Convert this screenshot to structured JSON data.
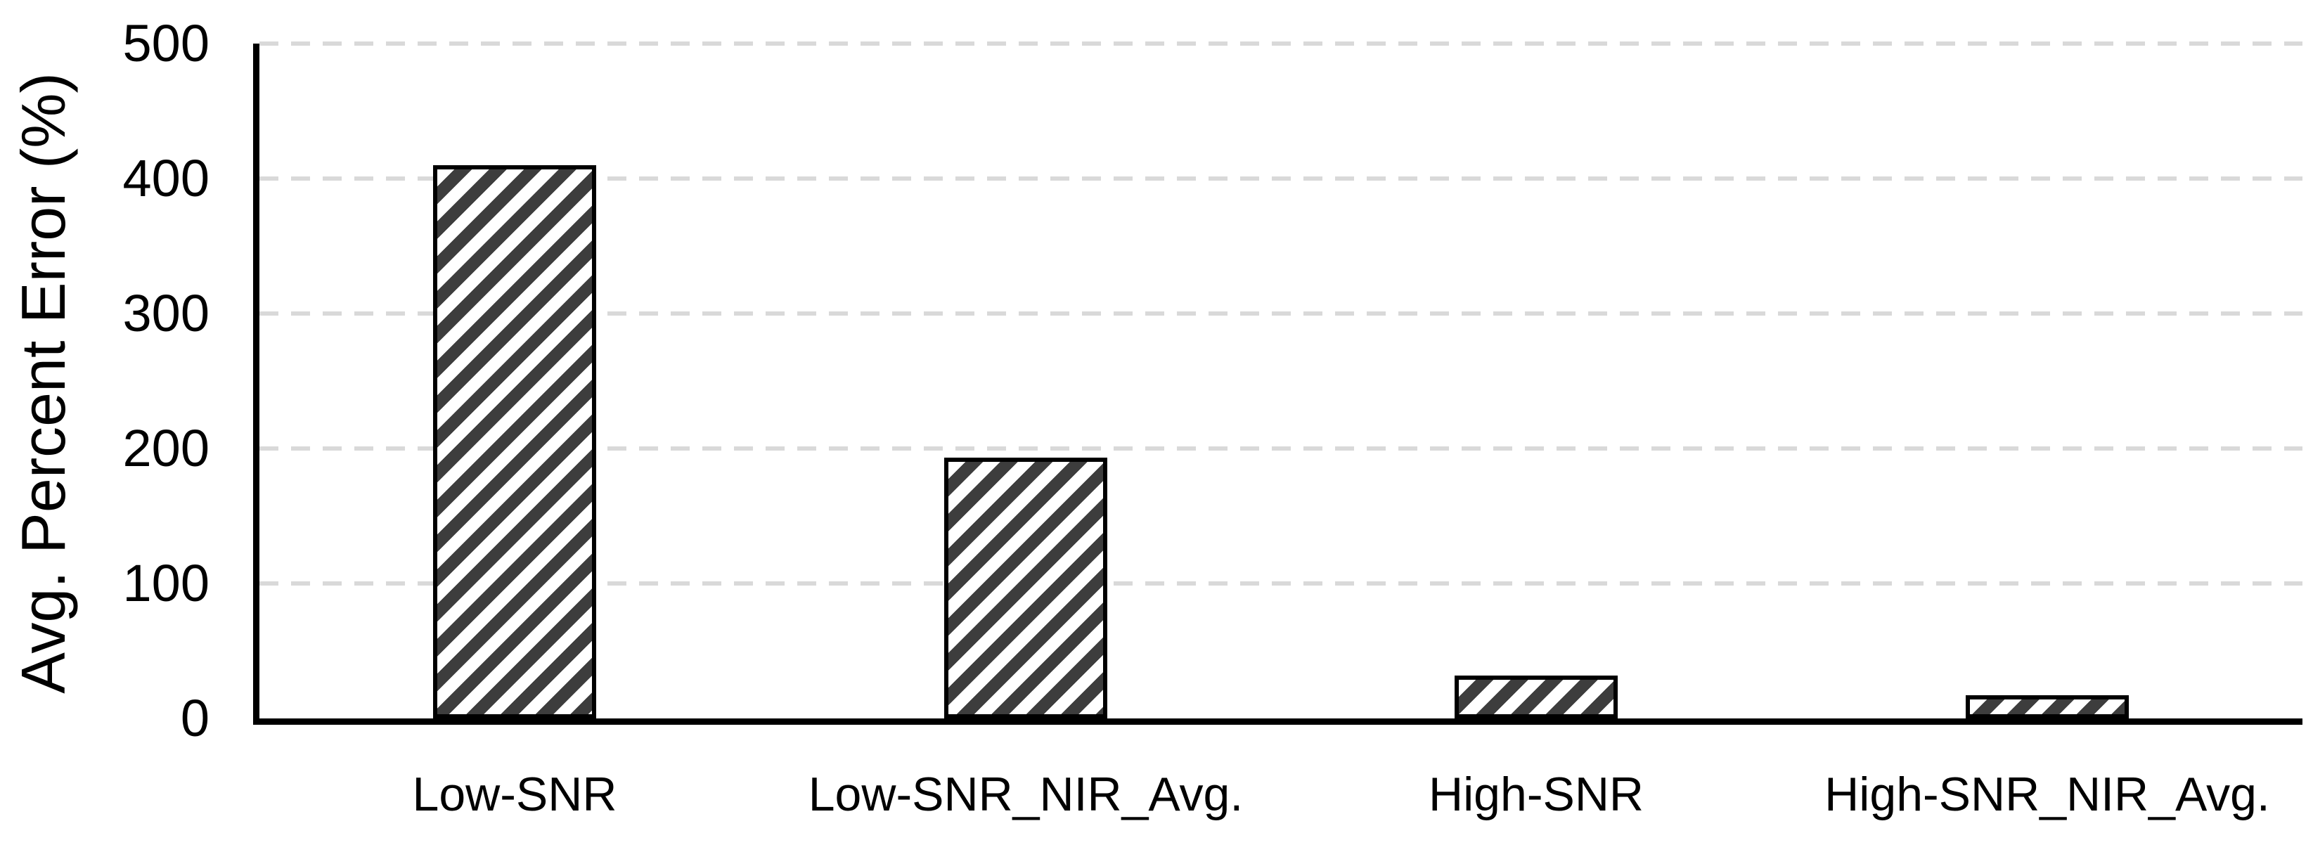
{
  "chart_data": {
    "type": "bar",
    "title": "",
    "categories": [
      "Low-SNR",
      "Low-SNR_NIR_Avg.",
      "High-SNR",
      "High-SNR_NIR_Avg."
    ],
    "values": [
      410,
      193,
      32,
      17
    ],
    "xlabel": "",
    "ylabel": "Avg. Percent Error (%)",
    "ylim": [
      0,
      500
    ],
    "yticks": [
      0,
      100,
      200,
      300,
      400,
      500
    ],
    "grid": "horizontal-dashed",
    "legend_position": "none",
    "colors": {
      "bar_fill": "#ffffff",
      "hatch": "#3d3d3d",
      "bar_border": "#000000",
      "gridline": "#d9d9d9",
      "axis": "#000000",
      "text": "#000000",
      "background": "#ffffff"
    },
    "bar_hatch_style": "diagonal-forward-slash"
  }
}
